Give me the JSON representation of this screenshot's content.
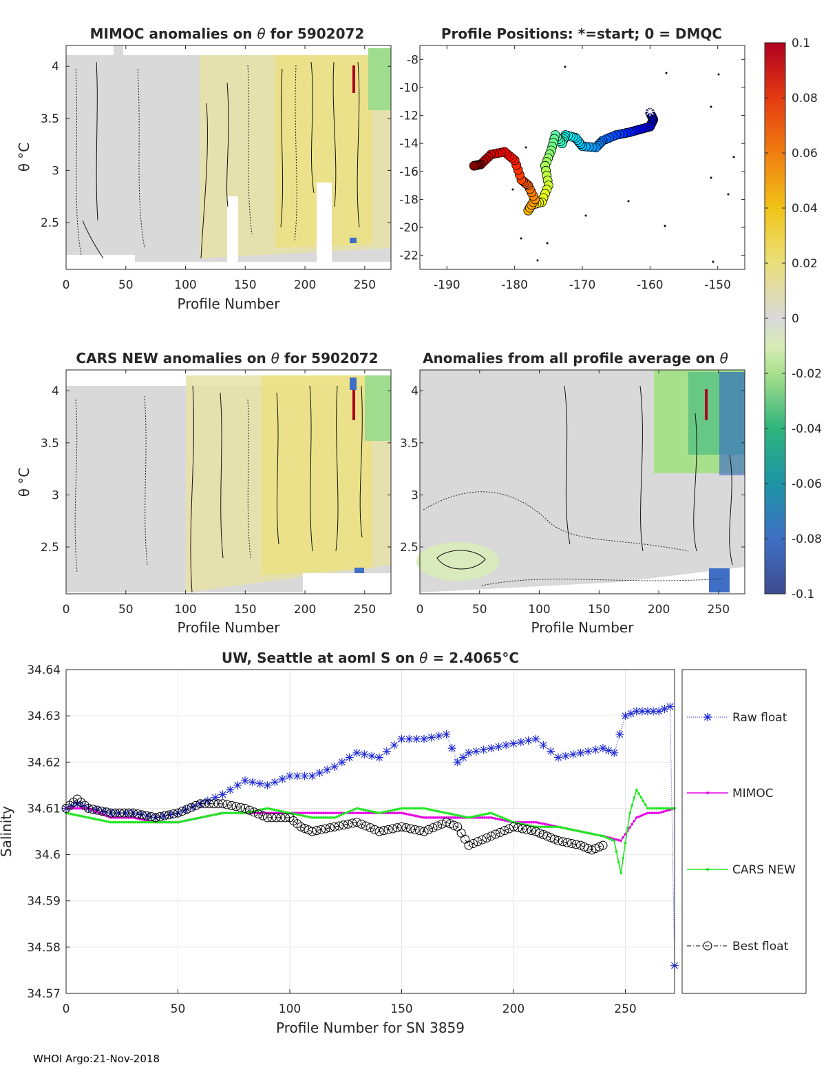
{
  "colors": {
    "raw_float": "#1f2ad6",
    "mimoc": "#e600e6",
    "cars_new": "#1fe61f",
    "best_float": "#000000",
    "anomaly_background": "#d9d9d9",
    "positive_anomaly": "#eadf7a",
    "negative_anomaly": "#9fdc8e"
  },
  "chart_data": [
    {
      "id": "mimoc",
      "type": "heatmap",
      "title_prefix": "MIMOC anomalies on ",
      "title_suffix": "  for 5902072",
      "theta_symbol": "θ",
      "xlabel": "Profile Number",
      "ylabel": "θ °C",
      "xlim": [
        0,
        272
      ],
      "ylim": [
        2.05,
        4.2
      ],
      "xticks": [
        0,
        50,
        100,
        150,
        200,
        250
      ],
      "yticks": [
        2.5,
        3,
        3.5,
        4
      ]
    },
    {
      "id": "positions",
      "type": "scatter",
      "title": "Profile Positions: *=start; 0 = DMQC",
      "xlim": [
        -194,
        -146
      ],
      "ylim": [
        -23,
        -7
      ],
      "xticks": [
        -190,
        -180,
        -170,
        -160,
        -150
      ],
      "yticks": [
        -8,
        -10,
        -12,
        -14,
        -16,
        -18,
        -20,
        -22
      ],
      "track_lon": [
        -160,
        -159.5,
        -160,
        -161.5,
        -163,
        -165,
        -167,
        -168,
        -170,
        -171,
        -172.5,
        -173,
        -174,
        -174.6,
        -175.5,
        -175,
        -176,
        -177.5,
        -178,
        -177,
        -178,
        -179,
        -180,
        -181.5,
        -183.5,
        -185,
        -186
      ],
      "track_lat": [
        -11.8,
        -12.3,
        -12.8,
        -13,
        -13.2,
        -13.4,
        -13.8,
        -14.3,
        -14.2,
        -13.6,
        -13.4,
        -14,
        -13.4,
        -14.5,
        -15.6,
        -17,
        -18.2,
        -18.4,
        -18.8,
        -18,
        -17,
        -16.6,
        -15.2,
        -14.6,
        -14.8,
        -15.5,
        -15.6
      ],
      "start_lon": -160,
      "start_lat": -11.7
    },
    {
      "id": "cars",
      "type": "heatmap",
      "title_prefix": "CARS NEW anomalies on ",
      "title_suffix": " for 5902072",
      "theta_symbol": "θ",
      "xlabel": "Profile Number",
      "ylabel": "θ °C",
      "xlim": [
        0,
        272
      ],
      "ylim": [
        2.05,
        4.2
      ],
      "xticks": [
        0,
        50,
        100,
        150,
        200,
        250
      ],
      "yticks": [
        2.5,
        3,
        3.5,
        4
      ]
    },
    {
      "id": "average",
      "type": "heatmap",
      "title_prefix": "Anomalies from all profile average on ",
      "theta_symbol": "θ",
      "xlabel": "Profile Number",
      "xlim": [
        0,
        272
      ],
      "ylim": [
        2.05,
        4.2
      ],
      "xticks": [
        0,
        50,
        100,
        150,
        200,
        250
      ],
      "yticks": [
        2.5,
        3,
        3.5,
        4
      ]
    },
    {
      "id": "colorbar",
      "type": "colorbar",
      "range": [
        -0.1,
        0.1
      ],
      "tick_labels": [
        "0.1",
        "0.08",
        "0.06",
        "0.04",
        "0.02",
        "0",
        "-0.02",
        "-0.04",
        "-0.06",
        "-0.08",
        "-0.1"
      ]
    },
    {
      "id": "salinity",
      "type": "line",
      "title_prefix": "UW, Seattle at aoml S on ",
      "theta_symbol": "θ",
      "title_value": " = 2.4065",
      "title_unit": "°C",
      "xlabel": "Profile Number for SN 3859",
      "ylabel": "Salinity",
      "xlim": [
        0,
        272
      ],
      "ylim": [
        34.57,
        34.64
      ],
      "xticks": [
        0,
        50,
        100,
        150,
        200,
        250
      ],
      "ytick_values": [
        34.57,
        34.58,
        34.59,
        34.6,
        34.61,
        34.62,
        34.63,
        34.64
      ],
      "ytick_labels": [
        "34.57",
        "34.58",
        "34.59",
        "34.6",
        "34.61",
        "34.62",
        "34.63",
        "34.64"
      ],
      "legend": [
        "Raw float",
        "MIMOC",
        "CARS NEW",
        "Best float"
      ],
      "series": [
        {
          "name": "Raw float",
          "x": [
            0,
            5,
            10,
            20,
            30,
            40,
            50,
            60,
            70,
            80,
            90,
            100,
            110,
            120,
            130,
            140,
            150,
            160,
            170,
            175,
            180,
            190,
            200,
            210,
            220,
            230,
            240,
            245,
            250,
            255,
            260,
            265,
            270,
            272
          ],
          "y": [
            34.61,
            34.611,
            34.61,
            34.609,
            34.609,
            34.608,
            34.609,
            34.611,
            34.613,
            34.616,
            34.615,
            34.617,
            34.617,
            34.619,
            34.622,
            34.621,
            34.625,
            34.625,
            34.626,
            34.62,
            34.622,
            34.623,
            34.624,
            34.625,
            34.621,
            34.622,
            34.623,
            34.622,
            34.63,
            34.631,
            34.631,
            34.631,
            34.632,
            34.576
          ]
        },
        {
          "name": "MIMOC",
          "x": [
            0,
            10,
            20,
            30,
            40,
            50,
            60,
            70,
            80,
            90,
            100,
            110,
            120,
            130,
            140,
            150,
            160,
            170,
            180,
            190,
            200,
            210,
            220,
            230,
            240,
            248,
            255,
            260,
            265,
            272
          ],
          "y": [
            34.61,
            34.61,
            34.608,
            34.608,
            34.607,
            34.607,
            34.608,
            34.609,
            34.609,
            34.609,
            34.609,
            34.609,
            34.609,
            34.609,
            34.609,
            34.609,
            34.608,
            34.608,
            34.608,
            34.608,
            34.607,
            34.607,
            34.606,
            34.605,
            34.604,
            34.603,
            34.608,
            34.609,
            34.609,
            34.61
          ]
        },
        {
          "name": "CARS NEW",
          "x": [
            0,
            10,
            20,
            30,
            40,
            50,
            60,
            70,
            80,
            90,
            100,
            110,
            120,
            130,
            140,
            150,
            160,
            170,
            180,
            190,
            200,
            210,
            220,
            230,
            240,
            245,
            248,
            252,
            255,
            260,
            265,
            272
          ],
          "y": [
            34.609,
            34.608,
            34.607,
            34.607,
            34.607,
            34.607,
            34.608,
            34.609,
            34.609,
            34.61,
            34.609,
            34.608,
            34.608,
            34.61,
            34.609,
            34.61,
            34.61,
            34.609,
            34.608,
            34.609,
            34.607,
            34.606,
            34.606,
            34.605,
            34.604,
            34.603,
            34.596,
            34.609,
            34.614,
            34.61,
            34.61,
            34.61
          ]
        },
        {
          "name": "Best float",
          "x": [
            0,
            5,
            10,
            20,
            30,
            40,
            50,
            60,
            70,
            80,
            90,
            100,
            105,
            110,
            120,
            130,
            140,
            150,
            160,
            170,
            175,
            180,
            190,
            200,
            210,
            215,
            220,
            230,
            235,
            240
          ],
          "y": [
            34.61,
            34.612,
            34.61,
            34.609,
            34.609,
            34.608,
            34.609,
            34.611,
            34.611,
            34.61,
            34.608,
            34.608,
            34.606,
            34.605,
            34.606,
            34.607,
            34.605,
            34.606,
            34.605,
            34.607,
            34.606,
            34.602,
            34.604,
            34.606,
            34.605,
            34.604,
            34.603,
            34.602,
            34.601,
            34.602
          ]
        }
      ]
    }
  ],
  "footer": "WHOI Argo:21-Nov-2018"
}
